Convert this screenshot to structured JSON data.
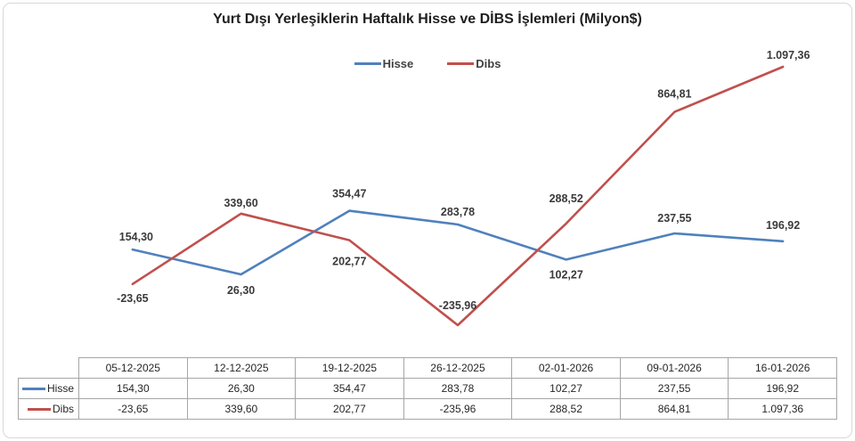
{
  "chart_data": {
    "type": "line",
    "title": "Yurt Dışı Yerleşiklerin Haftalık Hisse ve DİBS İşlemleri (Milyon$)",
    "categories": [
      "05-12-2025",
      "12-12-2025",
      "19-12-2025",
      "26-12-2025",
      "02-01-2026",
      "09-01-2026",
      "16-01-2026"
    ],
    "series": [
      {
        "name": "Hisse",
        "color": "#4F81BD",
        "values": [
          154.3,
          26.3,
          354.47,
          283.78,
          102.27,
          237.55,
          196.92
        ],
        "labels": [
          "154,30",
          "26,30",
          "354,47",
          "283,78",
          "102,27",
          "237,55",
          "196,92"
        ]
      },
      {
        "name": "Dibs",
        "color": "#C0504D",
        "values": [
          -23.65,
          339.6,
          202.77,
          -235.96,
          288.52,
          864.81,
          1097.36
        ],
        "labels": [
          "-23,65",
          "339,60",
          "202,77",
          "-235,96",
          "288,52",
          "864,81",
          "1.097,36"
        ]
      }
    ],
    "legend_position": "top",
    "legend_entries": [
      "Hisse",
      "Dibs"
    ],
    "grid": false,
    "axes_visible": false,
    "data_labels": true,
    "value_range_shown": [
      -235.96,
      1097.36
    ]
  },
  "table": {
    "columns": [
      "05-12-2025",
      "12-12-2025",
      "19-12-2025",
      "26-12-2025",
      "02-01-2026",
      "09-01-2026",
      "16-01-2026"
    ],
    "rows": [
      {
        "name": "Hisse",
        "color": "#4F81BD",
        "cells": [
          "154,30",
          "26,30",
          "354,47",
          "283,78",
          "102,27",
          "237,55",
          "196,92"
        ]
      },
      {
        "name": "Dibs",
        "color": "#C0504D",
        "cells": [
          "-23,65",
          "339,60",
          "202,77",
          "-235,96",
          "288,52",
          "864,81",
          "1.097,36"
        ]
      }
    ]
  }
}
